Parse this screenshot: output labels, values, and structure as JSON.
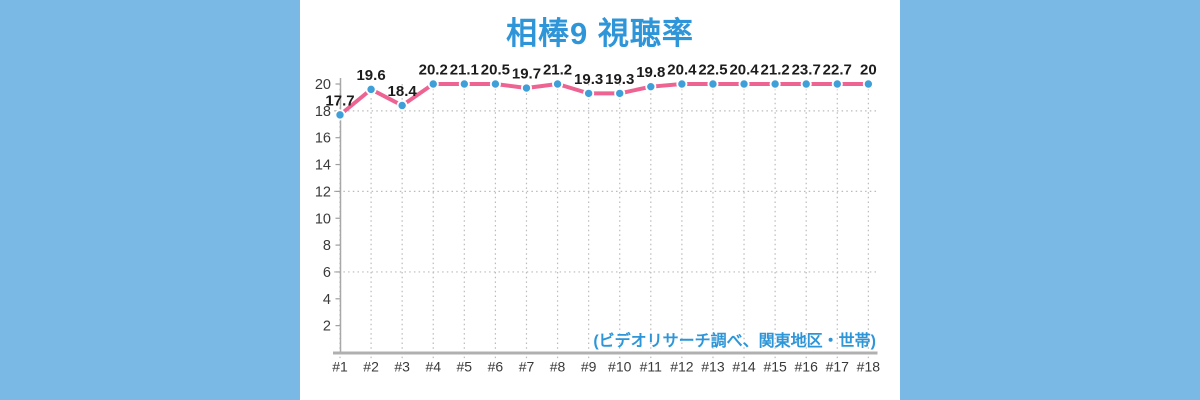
{
  "page": {
    "background_color": "#7ab8e5",
    "panel_color": "#ffffff"
  },
  "title": {
    "text": "相棒9 視聴率",
    "color": "#2e96d8"
  },
  "annotation": {
    "text": "(ビデオリサーチ調べ、関東地区・世帯)",
    "color": "#2e96d8"
  },
  "chart_data": {
    "type": "line",
    "title": "相棒9 視聴率",
    "categories": [
      "#1",
      "#2",
      "#3",
      "#4",
      "#5",
      "#6",
      "#7",
      "#8",
      "#9",
      "#10",
      "#11",
      "#12",
      "#13",
      "#14",
      "#15",
      "#16",
      "#17",
      "#18"
    ],
    "values": [
      17.7,
      19.6,
      18.4,
      20.2,
      21.1,
      20.5,
      19.7,
      21.2,
      19.3,
      19.3,
      19.8,
      20.4,
      22.5,
      20.4,
      21.2,
      23.7,
      22.7,
      20
    ],
    "xlabel": "",
    "ylabel": "",
    "ylim": [
      0,
      20
    ],
    "yticks": [
      2,
      4,
      6,
      8,
      10,
      12,
      14,
      16,
      18,
      20
    ],
    "h_gridlines": [
      6,
      12,
      18
    ],
    "values_above_ymax_clamped": true,
    "grid": true,
    "legend_position": "none",
    "annotation": "(ビデオリサーチ調べ、関東地区・世帯)",
    "colors": {
      "line": "#ed6492",
      "marker": "#3f9fd8",
      "marker_edge": "#ffffff",
      "data_label": "#1c1c1c",
      "axis_line": "#b0b0b0",
      "grid_line": "#bbbbbb",
      "tick_label": "#3a3a3a"
    }
  }
}
